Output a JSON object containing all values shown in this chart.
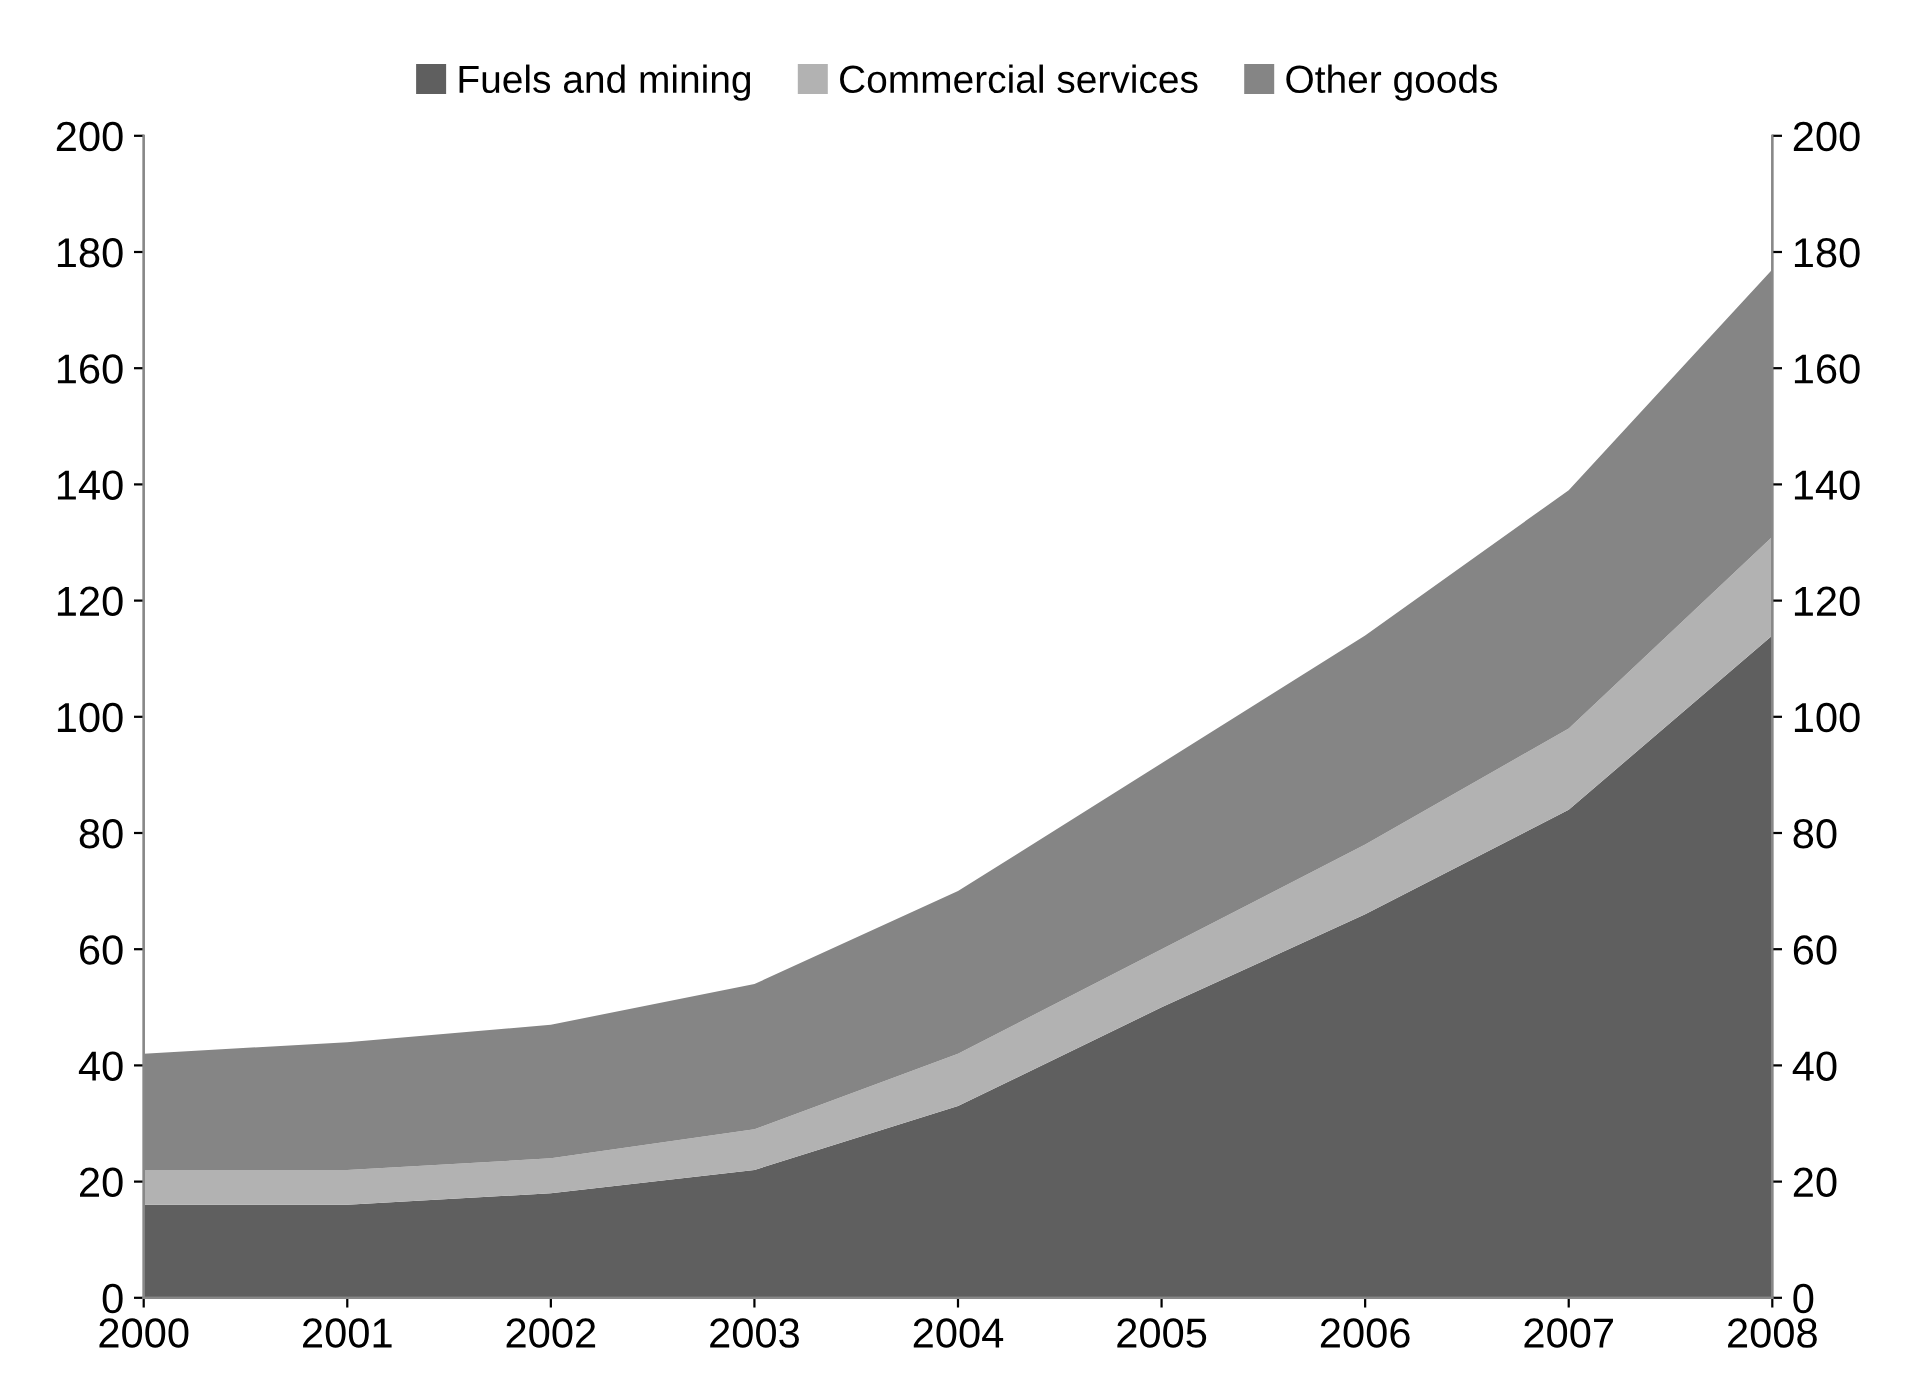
{
  "chart_data": {
    "type": "area",
    "stacked": true,
    "x": [
      2000,
      2001,
      2002,
      2003,
      2004,
      2005,
      2006,
      2007,
      2008
    ],
    "series": [
      {
        "name": "Fuels and mining",
        "color": "#5f5f5f",
        "values": [
          16,
          16,
          18,
          22,
          33,
          50,
          66,
          84,
          114
        ]
      },
      {
        "name": "Commercial services",
        "color": "#b2b2b2",
        "values": [
          6,
          6,
          6,
          7,
          9,
          10,
          12,
          14,
          17
        ]
      },
      {
        "name": "Other goods",
        "color": "#858585",
        "values": [
          20,
          22,
          23,
          25,
          28,
          32,
          36,
          41,
          46
        ]
      }
    ],
    "xlim": [
      2000,
      2008
    ],
    "xticks": [
      2000,
      2001,
      2002,
      2003,
      2004,
      2005,
      2006,
      2007,
      2008
    ],
    "ylim": [
      0,
      200
    ],
    "yticks": [
      0,
      20,
      40,
      60,
      80,
      100,
      120,
      140,
      160,
      180,
      200
    ],
    "y2lim": [
      0,
      200
    ],
    "y2ticks": [
      0,
      20,
      40,
      60,
      80,
      100,
      120,
      140,
      160,
      180,
      200
    ],
    "grid": false,
    "legend": "top"
  }
}
